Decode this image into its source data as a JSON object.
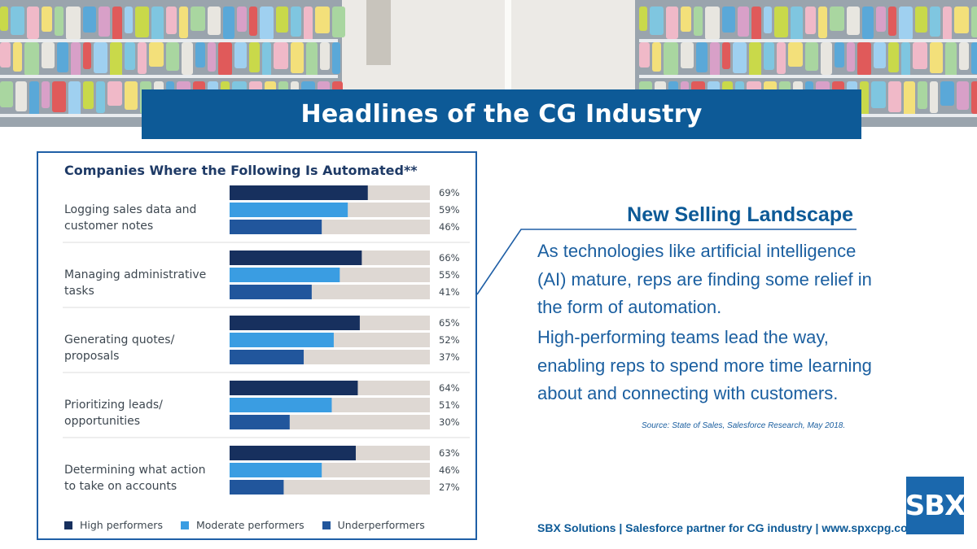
{
  "header": {
    "title": "Headlines of the CG Industry"
  },
  "chart": {
    "title": "Companies Where the Following Is Automated**"
  },
  "chart_data": {
    "type": "bar",
    "orientation": "horizontal",
    "title": "Companies Where the Following Is Automated**",
    "categories": [
      [
        "Logging sales data and",
        "customer notes"
      ],
      [
        "Managing administrative",
        "tasks"
      ],
      [
        "Generating quotes/",
        "proposals"
      ],
      [
        "Prioritizing leads/",
        "opportunities"
      ],
      [
        "Determining what action",
        "to take on accounts"
      ]
    ],
    "series": [
      {
        "name": "High performers",
        "color": "#17305e",
        "values": [
          69,
          66,
          65,
          64,
          63
        ]
      },
      {
        "name": "Moderate performers",
        "color": "#3a9de2",
        "values": [
          59,
          55,
          52,
          51,
          46
        ]
      },
      {
        "name": "Underperformers",
        "color": "#21569c",
        "values": [
          46,
          41,
          37,
          30,
          27
        ]
      }
    ],
    "value_suffix": "%",
    "xlim": [
      0,
      100
    ],
    "track_color": "#ded8d3",
    "grid": false,
    "legend_position": "bottom-left"
  },
  "content": {
    "heading": "New Selling Landscape",
    "paragraph_1": "As technologies like artificial intelligence (AI) mature, reps are finding some relief in the form of automation.",
    "paragraph_2": "High-performing teams lead the way, enabling reps to spend more time learning about and connecting with customers.",
    "source": "Source: State of Sales, Salesforce Research, May 2018."
  },
  "footer": {
    "text": "SBX Solutions | Salesforce partner for CG industry | www.spxcpg.com",
    "logo_text": "SBX"
  },
  "colors": {
    "brand_blue": "#0d5a97",
    "panel_border": "#1f5fa6"
  },
  "icons": {
    "logo": "sbx-logo"
  }
}
